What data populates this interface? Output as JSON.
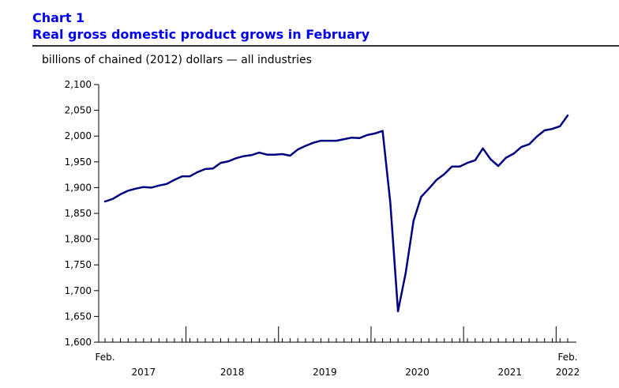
{
  "chart_data": {
    "type": "line",
    "label": "Chart 1",
    "title": "Real gross domestic product grows in February",
    "ylabel": "billions of chained (2012) dollars — all industries",
    "xlabel": "",
    "ylim": [
      1600,
      2100
    ],
    "y_ticks": [
      "1,600",
      "1,650",
      "1,700",
      "1,750",
      "1,800",
      "1,850",
      "1,900",
      "1,950",
      "2,000",
      "2,050",
      "2,100"
    ],
    "grid": false,
    "legend": "none",
    "line_color": "#000080",
    "x_start_label": "Feb.",
    "x_end_label_month": "Feb.",
    "x_end_label_year": "2022",
    "year_labels": [
      "2017",
      "2018",
      "2019",
      "2020",
      "2021"
    ],
    "x": [
      "2017-02",
      "2017-03",
      "2017-04",
      "2017-05",
      "2017-06",
      "2017-07",
      "2017-08",
      "2017-09",
      "2017-10",
      "2017-11",
      "2017-12",
      "2018-01",
      "2018-02",
      "2018-03",
      "2018-04",
      "2018-05",
      "2018-06",
      "2018-07",
      "2018-08",
      "2018-09",
      "2018-10",
      "2018-11",
      "2018-12",
      "2019-01",
      "2019-02",
      "2019-03",
      "2019-04",
      "2019-05",
      "2019-06",
      "2019-07",
      "2019-08",
      "2019-09",
      "2019-10",
      "2019-11",
      "2019-12",
      "2020-01",
      "2020-02",
      "2020-03",
      "2020-04",
      "2020-05",
      "2020-06",
      "2020-07",
      "2020-08",
      "2020-09",
      "2020-10",
      "2020-11",
      "2020-12",
      "2021-01",
      "2021-02",
      "2021-03",
      "2021-04",
      "2021-05",
      "2021-06",
      "2021-07",
      "2021-08",
      "2021-09",
      "2021-10",
      "2021-11",
      "2021-12",
      "2022-01",
      "2022-02"
    ],
    "series": [
      {
        "values": [
          1873,
          1878,
          1887,
          1894,
          1898,
          1901,
          1900,
          1904,
          1907,
          1915,
          1922,
          1922,
          1930,
          1936,
          1937,
          1948,
          1951,
          1957,
          1961,
          1963,
          1968,
          1964,
          1964,
          1965,
          1962,
          1974,
          1981,
          1987,
          1991,
          1991,
          1991,
          1994,
          1997,
          1996,
          2002,
          2005,
          2010,
          1870,
          1660,
          1735,
          1835,
          1882,
          1898,
          1915,
          1926,
          1941,
          1941,
          1948,
          1953,
          1976,
          1955,
          1942,
          1958,
          1966,
          1979,
          1984,
          1999,
          2011,
          2014,
          2019,
          2040
        ]
      }
    ]
  }
}
